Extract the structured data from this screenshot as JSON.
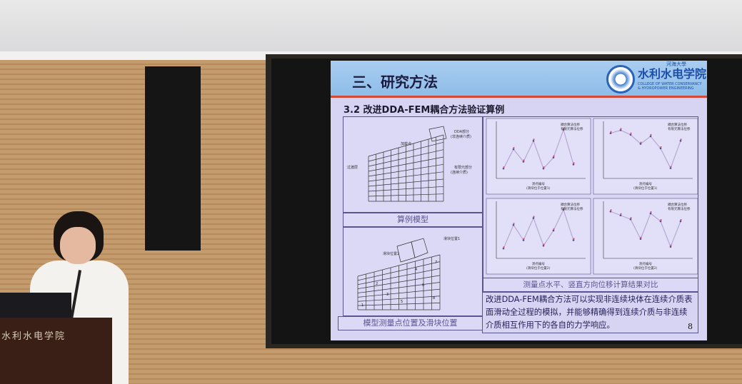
{
  "slide": {
    "title": "三、研究方法",
    "school_name_top": "河海大學",
    "school_name": "水利水电学院",
    "school_name_en": "COLLEGE OF WATER CONSERVANCY & HYDROPOWER ENGINEERING",
    "subtitle": "3.2 改进DDA-FEM耦合方法验证算例",
    "model": {
      "labels": {
        "dda": "DDA部分",
        "dda_sub": "(非连续介质)",
        "load": "加载点",
        "transition": "过渡层",
        "fem": "有限元部分",
        "fem_sub": "(连续介质)"
      },
      "caption": "算例模型"
    },
    "positions": {
      "slider1": "滑块位置1",
      "slider2": "滑块位置2",
      "points": [
        "1",
        "2",
        "3",
        "4",
        "5",
        "6",
        "7",
        "8"
      ],
      "caption": "模型测量点位置及滑块位置"
    },
    "charts": {
      "legend": [
        "耦合算法位移",
        "有限元算法位移"
      ],
      "xlabel": "测点编号",
      "sub1": "(滑块位于位置1)",
      "sub2": "(滑块位于位置2)",
      "caption": "测量点水平、竖直方向位移计算结果对比"
    },
    "body_text": "改进DDA-FEM耦合方法可以实现非连续块体在连续介质表面滑动全过程的模拟，并能够精确得到连续介质与非连续介质相互作用下的各自的力学响应。",
    "page_number": "8"
  },
  "podium_text": "水利水电学院",
  "colors": {
    "slide_bg": "#d7d4f3",
    "header_blue": "#8ebde9",
    "accent_red": "#d24a3a",
    "series1": "#5a4f8a",
    "series2": "#e0507a"
  }
}
